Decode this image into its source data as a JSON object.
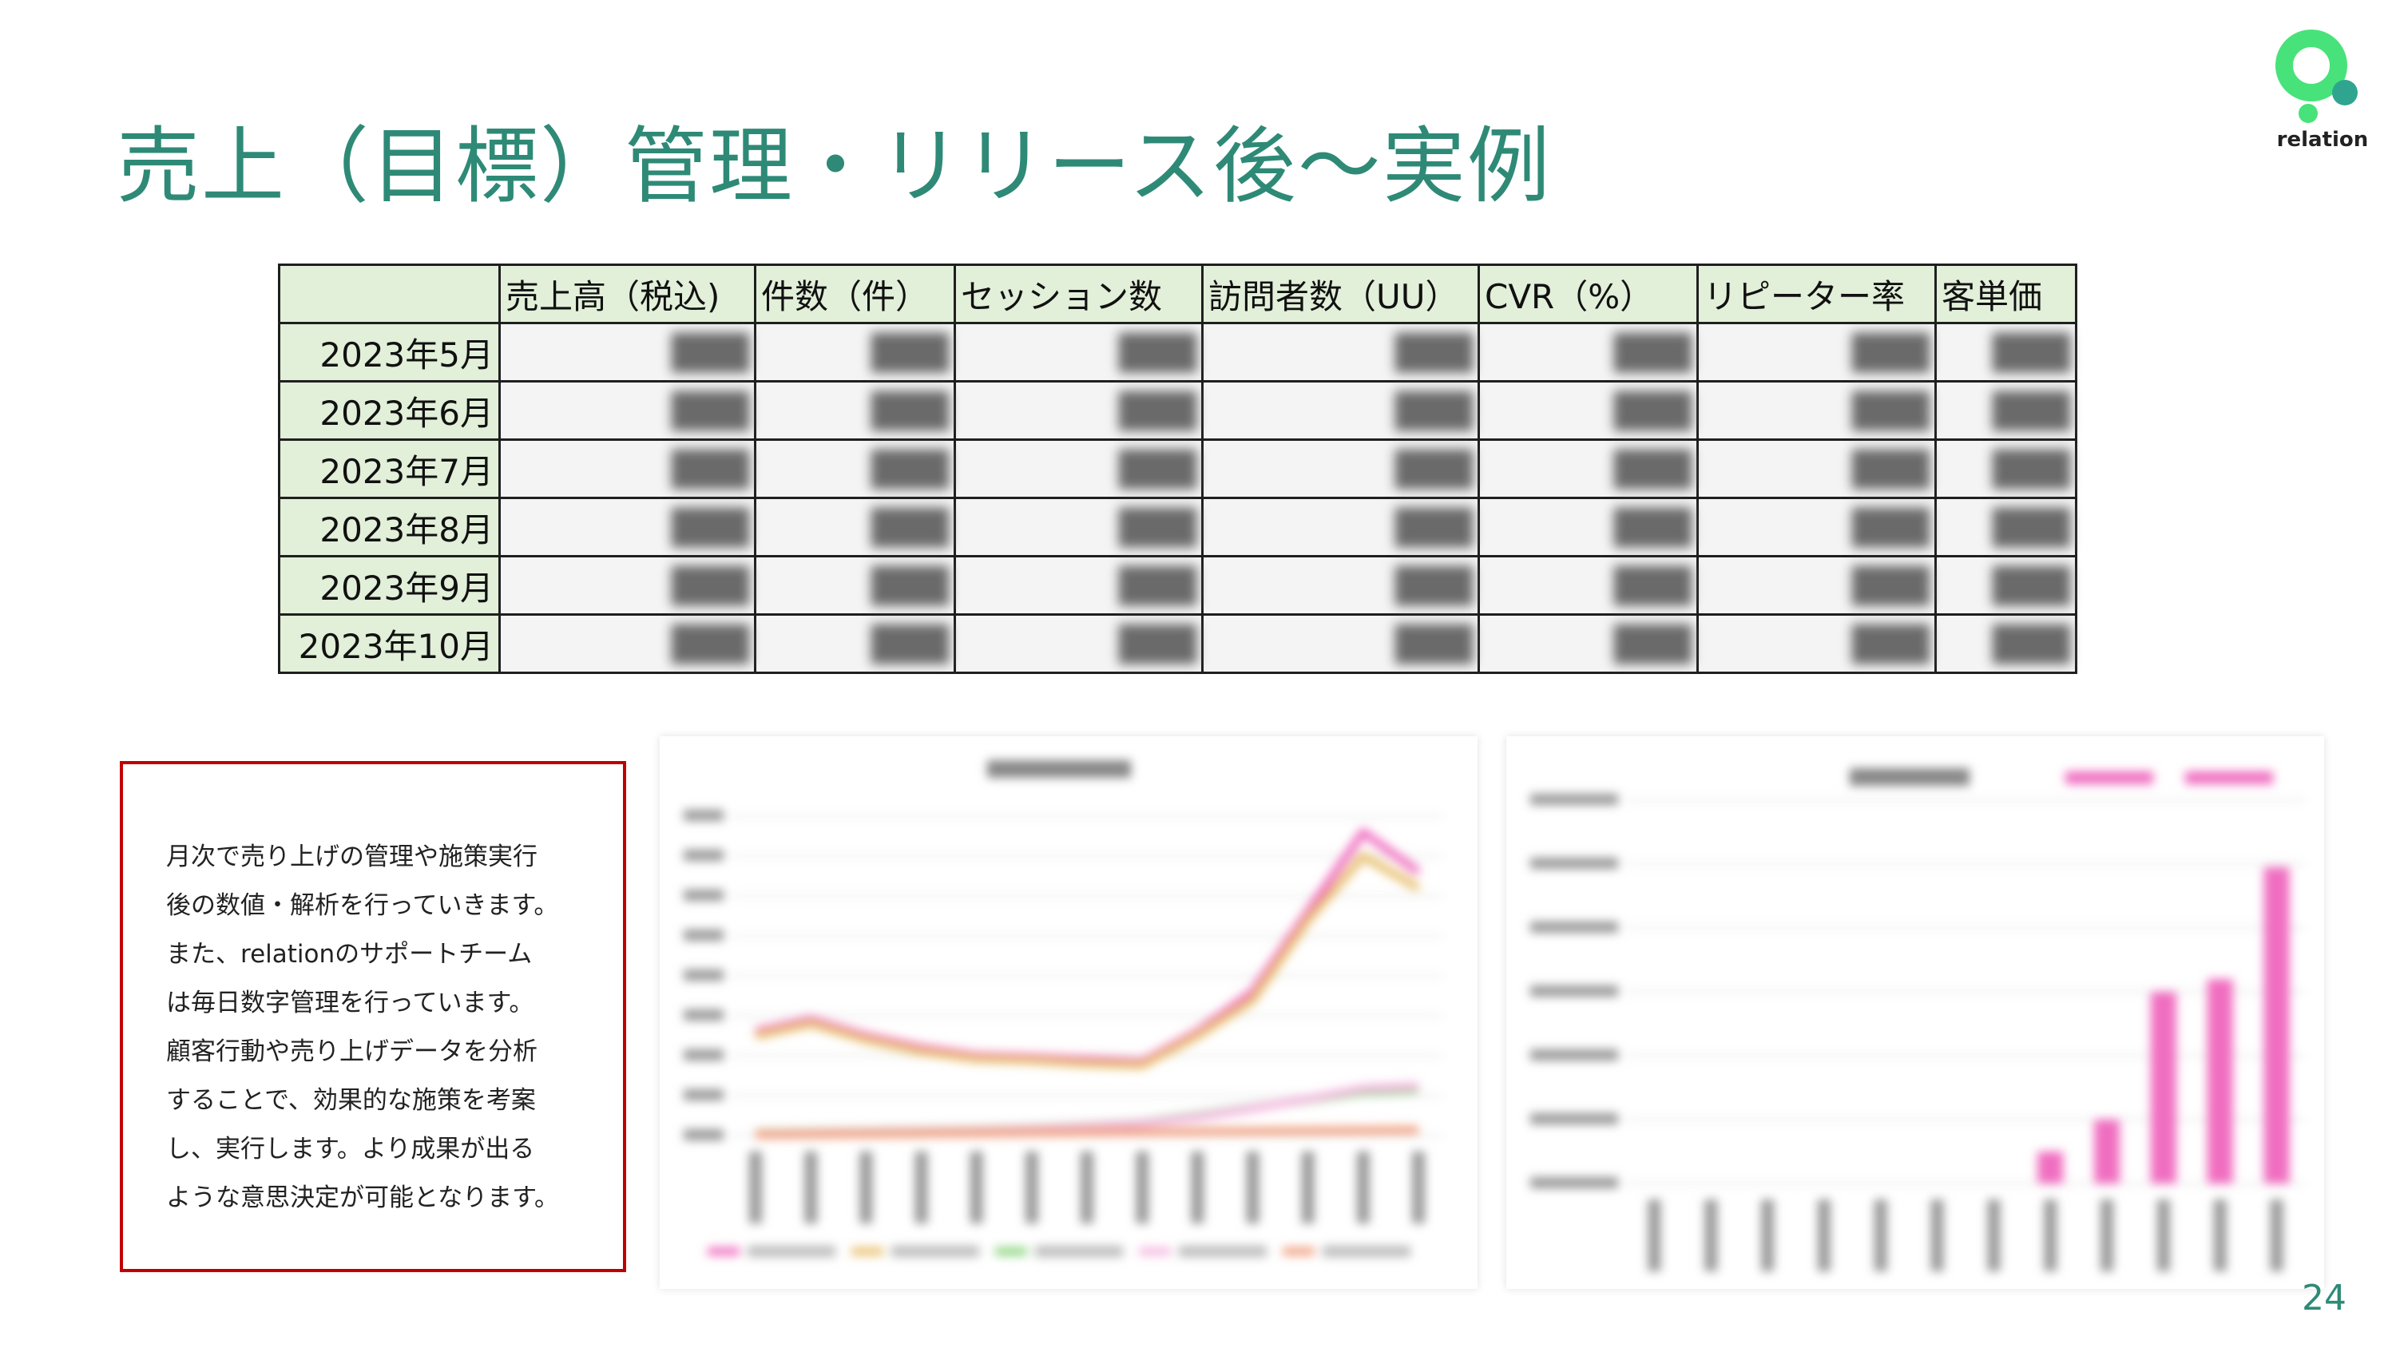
{
  "slide": {
    "title": "売上（目標）管理・リリース後〜実例",
    "page_number": "24"
  },
  "logo": {
    "text": "relation",
    "colors": {
      "ring": "#48e27a",
      "dot": "#2fa58f"
    }
  },
  "table": {
    "headers": [
      "",
      "売上高（税込)",
      "件数（件）",
      "セッション数",
      "訪問者数（UU）",
      "CVR（%）",
      "リピーター率",
      "客単価"
    ],
    "rows": [
      {
        "label": "2023年5月"
      },
      {
        "label": "2023年6月"
      },
      {
        "label": "2023年7月"
      },
      {
        "label": "2023年8月"
      },
      {
        "label": "2023年9月"
      },
      {
        "label": "2023年10月"
      }
    ]
  },
  "description": {
    "lines": [
      "月次で売り上げの管理や施策実行",
      "後の数値・解析を行っていきます。",
      "また、relationのサポートチーム",
      "は毎日数字管理を行っています。",
      "顧客行動や売り上げデータを分析",
      "することで、効果的な施策を考案",
      "し、実行します。より成果が出る",
      "ような意思決定が可能となります。"
    ]
  },
  "chart_data": [
    {
      "type": "line",
      "series": [
        {
          "color": "#f06ec0",
          "values": [
            13000,
            14500,
            12500,
            11000,
            10000,
            9800,
            9500,
            9200,
            13000,
            18000,
            28000,
            38000,
            33000
          ]
        },
        {
          "color": "#e8c070",
          "values": [
            12500,
            14000,
            12000,
            10500,
            9600,
            9400,
            9000,
            8800,
            12500,
            17000,
            27000,
            35000,
            31000
          ]
        },
        {
          "color": "#8bd47e",
          "values": [
            300,
            400,
            500,
            600,
            700,
            900,
            1200,
            1600,
            2500,
            3500,
            4500,
            5500,
            5800
          ]
        },
        {
          "color": "#f4b8e0",
          "values": [
            200,
            300,
            400,
            500,
            600,
            800,
            1100,
            1500,
            2300,
            3400,
            4600,
            5900,
            6200
          ]
        },
        {
          "color": "#f0a080",
          "values": [
            100,
            150,
            200,
            250,
            300,
            350,
            400,
            450,
            500,
            550,
            600,
            650,
            700
          ]
        }
      ],
      "ylim": [
        0,
        40000
      ]
    },
    {
      "type": "bar",
      "series": [
        {
          "color": "#f06ec0",
          "values": [
            0,
            0,
            0,
            0,
            0,
            0,
            0,
            100000,
            200000,
            600000,
            640000,
            990000
          ]
        }
      ],
      "ylim": [
        0,
        1200000
      ]
    }
  ]
}
